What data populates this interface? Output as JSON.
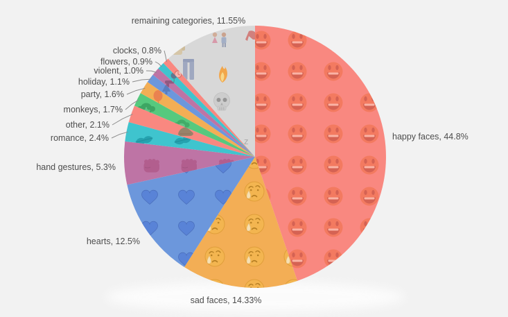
{
  "background_color": "#f2f2f2",
  "text_color": "#4d4d4d",
  "leader_line_color": "#8c8c8c",
  "chart_data": {
    "type": "pie",
    "title": "",
    "subtitle": "",
    "legend_position": "none",
    "start_angle_deg": 0,
    "direction": "clockwise",
    "label_style": "outside labels; leader lines on small slices; emoji pattern fills inside slices",
    "total_percent": 100.08,
    "slices": [
      {
        "id": "happy-faces",
        "category": "happy faces",
        "value": 44.8,
        "label": "happy faces, 44.8%",
        "color": "#F98880",
        "pattern": "grinning-face-emoji"
      },
      {
        "id": "sad-faces",
        "category": "sad faces",
        "value": 14.33,
        "label": "sad faces, 14.33%",
        "color": "#F3AE55",
        "pattern": "crying-face-emoji"
      },
      {
        "id": "hearts",
        "category": "hearts",
        "value": 12.5,
        "label": "hearts, 12.5%",
        "color": "#6C97DC",
        "pattern": "blue-heart-emoji"
      },
      {
        "id": "hand-gestures",
        "category": "hand gestures",
        "value": 5.3,
        "label": "hand gestures, 5.3%",
        "color": "#BE74A5",
        "pattern": "fist-emoji"
      },
      {
        "id": "romance",
        "category": "romance",
        "value": 2.4,
        "label": "romance, 2.4%",
        "color": "#3FC4CE",
        "pattern": "kiss-mark-emoji"
      },
      {
        "id": "other",
        "category": "other",
        "value": 2.1,
        "label": "other, 2.1%",
        "color": "#F98880",
        "pattern": "shoe-emoji"
      },
      {
        "id": "monkeys",
        "category": "monkeys",
        "value": 1.7,
        "label": "monkeys, 1.7%",
        "color": "#56C97E",
        "pattern": "monkey-emoji"
      },
      {
        "id": "party",
        "category": "party",
        "value": 1.6,
        "label": "party, 1.6%",
        "color": "#F3AE55",
        "pattern": "balloon-emoji"
      },
      {
        "id": "holiday",
        "category": "holiday",
        "value": 1.1,
        "label": "holiday, 1.1%",
        "color": "#6C97DC",
        "pattern": "holiday-emoji"
      },
      {
        "id": "violent",
        "category": "violent",
        "value": 1.0,
        "label": "violent, 1.0%",
        "color": "#BE74A5",
        "pattern": "weapon-emoji"
      },
      {
        "id": "flowers",
        "category": "flowers",
        "value": 0.9,
        "label": "flowers, 0.9%",
        "color": "#3FC4CE",
        "pattern": "rose-emoji"
      },
      {
        "id": "clocks",
        "category": "clocks",
        "value": 0.8,
        "label": "clocks, 0.8%",
        "color": "#F98880",
        "pattern": "clock-emoji"
      },
      {
        "id": "remaining-categories",
        "category": "remaining categories",
        "value": 11.55,
        "label": "remaining categories, 11.55%",
        "color": "#D8D8D8",
        "pattern": "mixed-emoji (couple, jeans, fire, skull, high-heel, shirt, zzz)"
      }
    ]
  }
}
